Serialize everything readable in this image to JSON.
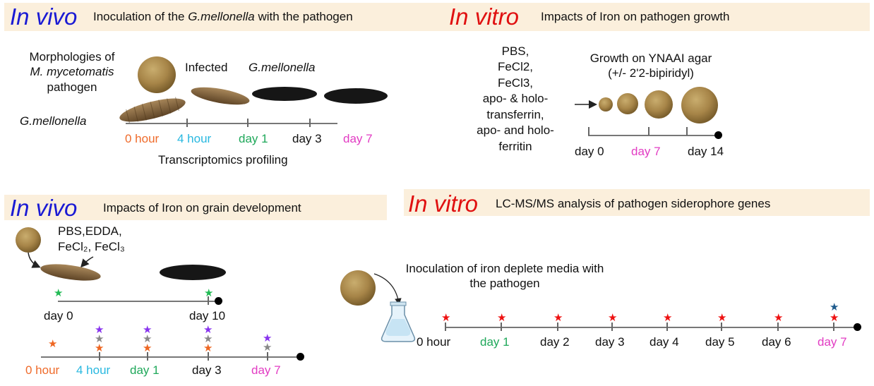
{
  "colors": {
    "in_vivo": "#1a1ad4",
    "in_vitro": "#e01010",
    "hour0": "#ef6b2b",
    "hour4": "#28b8e0",
    "day1": "#1fa85a",
    "day7": "#e23cc3",
    "banner": "#fbefdc",
    "star_red": "#ee1111",
    "star_green": "#22bb55",
    "star_orange": "#ee6622",
    "star_gray": "#888888",
    "star_purple": "#8833ee",
    "star_blue": "#1d5a8c"
  },
  "panel_a": {
    "tag": "In vivo",
    "title_pre": "Inoculation of the ",
    "title_italic": "G.mellonella",
    "title_post": " with the pathogen",
    "morph_line1": "Morphologies of",
    "morph_line2": "M. mycetomatis",
    "morph_line3": "pathogen",
    "host_label": "G.mellonella",
    "infected_label": "Infected",
    "infected_species": "G.mellonella",
    "timepoints": [
      "0 hour",
      "4 hour",
      "day 1",
      "day 3",
      "day 7"
    ],
    "footer": "Transcriptomics profiling"
  },
  "panel_b": {
    "tag": "In vitro",
    "title": "Impacts of Iron on pathogen growth",
    "treatments": [
      "PBS,",
      "FeCl2,",
      "FeCl3,",
      "apo- & holo-",
      "transferrin,",
      "apo- and holo-",
      "ferritin"
    ],
    "growth_line1": "Growth on YNAAI agar",
    "growth_line2": "(+/- 2'2-bipiridyl)",
    "timepoints": [
      "day 0",
      "day 7",
      "day 14"
    ]
  },
  "panel_c": {
    "tag": "In vivo",
    "title": "Impacts of Iron on grain development",
    "treat_line1": "PBS,EDDA,",
    "treat_line2": "FeCl₂, FeCl₃",
    "timeline1": [
      "day 0",
      "day 10"
    ],
    "timeline2": [
      "0 hour",
      "4 hour",
      "day 1",
      "day 3",
      "day 7"
    ]
  },
  "panel_d": {
    "tag": "In vitro",
    "title": "LC-MS/MS analysis of  pathogen siderophore genes",
    "inoc_line1": "Inoculation of iron deplete media with",
    "inoc_line2": "the pathogen",
    "timepoints": [
      "0 hour",
      "day 1",
      "day 2",
      "day 3",
      "day 4",
      "day 5",
      "day 6",
      "day 7"
    ]
  }
}
